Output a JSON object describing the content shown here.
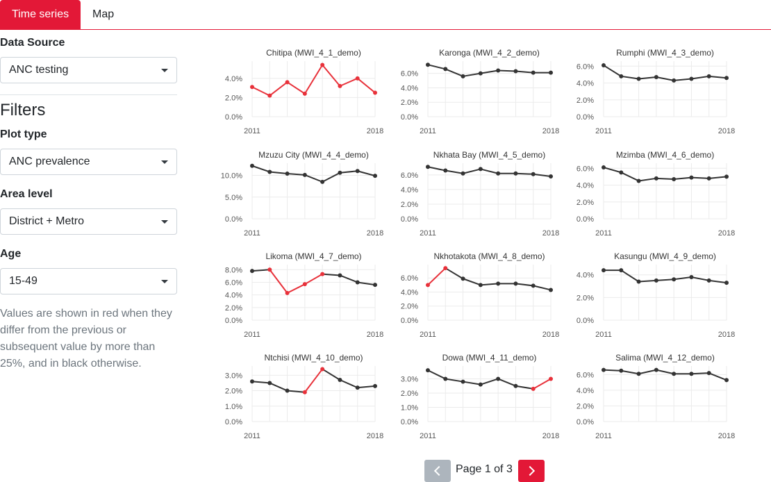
{
  "tabs": [
    {
      "label": "Time series",
      "active": true
    },
    {
      "label": "Map",
      "active": false
    }
  ],
  "sidebar": {
    "data_source": {
      "label": "Data Source",
      "value": "ANC testing"
    },
    "filters_heading": "Filters",
    "plot_type": {
      "label": "Plot type",
      "value": "ANC prevalence"
    },
    "area_level": {
      "label": "Area level",
      "value": "District + Metro"
    },
    "age": {
      "label": "Age",
      "value": "15-49"
    },
    "note": "Values are shown in red when they differ from the previous or subsequent value by more than 25%, and in black otherwise."
  },
  "pagination": {
    "text": "Page 1 of 3"
  },
  "colors": {
    "accent": "#e31837",
    "normal": "#333333",
    "flag": "#e8313a",
    "muted": "#adb5bd"
  },
  "chart_data": [
    {
      "type": "line",
      "title": "Chitipa (MWI_4_1_demo)",
      "x": [
        2011,
        2012,
        2013,
        2014,
        2015,
        2016,
        2017,
        2018
      ],
      "values": [
        3.1,
        2.2,
        3.6,
        2.4,
        5.4,
        3.2,
        4.0,
        2.5
      ],
      "flags": [
        1,
        1,
        1,
        1,
        1,
        1,
        1,
        1
      ],
      "yticks": [
        0,
        2,
        4
      ],
      "yticklabels": [
        "0.0%",
        "2.0%",
        "4.0%"
      ],
      "ylim": [
        0,
        5.8
      ],
      "xticks": [
        "2011",
        "2018"
      ]
    },
    {
      "type": "line",
      "title": "Karonga (MWI_4_2_demo)",
      "x": [
        2011,
        2012,
        2013,
        2014,
        2015,
        2016,
        2017,
        2018
      ],
      "values": [
        7.2,
        6.6,
        5.6,
        6.0,
        6.4,
        6.3,
        6.1,
        6.1
      ],
      "flags": [
        0,
        0,
        0,
        0,
        0,
        0,
        0,
        0
      ],
      "yticks": [
        0,
        2,
        4,
        6
      ],
      "yticklabels": [
        "0.0%",
        "2.0%",
        "4.0%",
        "6.0%"
      ],
      "ylim": [
        0,
        7.7
      ],
      "xticks": [
        "2011",
        "2018"
      ]
    },
    {
      "type": "line",
      "title": "Rumphi (MWI_4_3_demo)",
      "x": [
        2011,
        2012,
        2013,
        2014,
        2015,
        2016,
        2017,
        2018
      ],
      "values": [
        6.1,
        4.8,
        4.5,
        4.7,
        4.3,
        4.5,
        4.8,
        4.6
      ],
      "flags": [
        0,
        0,
        0,
        0,
        0,
        0,
        0,
        0
      ],
      "yticks": [
        0,
        2,
        4,
        6
      ],
      "yticklabels": [
        "0.0%",
        "2.0%",
        "4.0%",
        "6.0%"
      ],
      "ylim": [
        0,
        6.6
      ],
      "xticks": [
        "2011",
        "2018"
      ]
    },
    {
      "type": "line",
      "title": "Mzuzu City (MWI_4_4_demo)",
      "x": [
        2011,
        2012,
        2013,
        2014,
        2015,
        2016,
        2017,
        2018
      ],
      "values": [
        12.2,
        10.8,
        10.4,
        10.1,
        8.5,
        10.6,
        11.0,
        9.9
      ],
      "flags": [
        0,
        0,
        0,
        0,
        0,
        0,
        0,
        0
      ],
      "yticks": [
        0,
        5,
        10
      ],
      "yticklabels": [
        "0.0%",
        "5.0%",
        "10.0%"
      ],
      "ylim": [
        0,
        12.8
      ],
      "xticks": [
        "2011",
        "2018"
      ]
    },
    {
      "type": "line",
      "title": "Nkhata Bay (MWI_4_5_demo)",
      "x": [
        2011,
        2012,
        2013,
        2014,
        2015,
        2016,
        2017,
        2018
      ],
      "values": [
        7.1,
        6.6,
        6.2,
        6.8,
        6.2,
        6.2,
        6.1,
        5.8
      ],
      "flags": [
        0,
        0,
        0,
        0,
        0,
        0,
        0,
        0
      ],
      "yticks": [
        0,
        2,
        4,
        6
      ],
      "yticklabels": [
        "0.0%",
        "2.0%",
        "4.0%",
        "6.0%"
      ],
      "ylim": [
        0,
        7.6
      ],
      "xticks": [
        "2011",
        "2018"
      ]
    },
    {
      "type": "line",
      "title": "Mzimba (MWI_4_6_demo)",
      "x": [
        2011,
        2012,
        2013,
        2014,
        2015,
        2016,
        2017,
        2018
      ],
      "values": [
        6.1,
        5.5,
        4.5,
        4.8,
        4.7,
        4.9,
        4.8,
        5.0
      ],
      "flags": [
        0,
        0,
        0,
        0,
        0,
        0,
        0,
        0
      ],
      "yticks": [
        0,
        2,
        4,
        6
      ],
      "yticklabels": [
        "0.0%",
        "2.0%",
        "4.0%",
        "6.0%"
      ],
      "ylim": [
        0,
        6.6
      ],
      "xticks": [
        "2011",
        "2018"
      ]
    },
    {
      "type": "line",
      "title": "Likoma (MWI_4_7_demo)",
      "x": [
        2011,
        2012,
        2013,
        2014,
        2015,
        2016,
        2017,
        2018
      ],
      "values": [
        7.8,
        8.0,
        4.3,
        5.7,
        7.3,
        7.1,
        6.0,
        5.6
      ],
      "flags": [
        0,
        1,
        1,
        1,
        1,
        0,
        0,
        0
      ],
      "yticks": [
        0,
        2,
        4,
        6,
        8
      ],
      "yticklabels": [
        "0.0%",
        "2.0%",
        "4.0%",
        "6.0%",
        "8.0%"
      ],
      "ylim": [
        0,
        8.8
      ],
      "xticks": [
        "2011",
        "2018"
      ]
    },
    {
      "type": "line",
      "title": "Nkhotakota (MWI_4_8_demo)",
      "x": [
        2011,
        2012,
        2013,
        2014,
        2015,
        2016,
        2017,
        2018
      ],
      "values": [
        5.0,
        7.4,
        5.9,
        5.0,
        5.2,
        5.2,
        4.9,
        4.3
      ],
      "flags": [
        1,
        1,
        0,
        0,
        0,
        0,
        0,
        0
      ],
      "yticks": [
        0,
        2,
        4,
        6
      ],
      "yticklabels": [
        "0.0%",
        "2.0%",
        "4.0%",
        "6.0%"
      ],
      "ylim": [
        0,
        7.9
      ],
      "xticks": [
        "2011",
        "2018"
      ]
    },
    {
      "type": "line",
      "title": "Kasungu (MWI_4_9_demo)",
      "x": [
        2011,
        2012,
        2013,
        2014,
        2015,
        2016,
        2017,
        2018
      ],
      "values": [
        4.4,
        4.4,
        3.4,
        3.5,
        3.6,
        3.8,
        3.5,
        3.3
      ],
      "flags": [
        0,
        0,
        0,
        0,
        0,
        0,
        0,
        0
      ],
      "yticks": [
        0,
        2,
        4
      ],
      "yticklabels": [
        "0.0%",
        "2.0%",
        "4.0%"
      ],
      "ylim": [
        0,
        4.9
      ],
      "xticks": [
        "2011",
        "2018"
      ]
    },
    {
      "type": "line",
      "title": "Ntchisi (MWI_4_10_demo)",
      "x": [
        2011,
        2012,
        2013,
        2014,
        2015,
        2016,
        2017,
        2018
      ],
      "values": [
        2.6,
        2.5,
        2.0,
        1.9,
        3.4,
        2.7,
        2.2,
        2.3
      ],
      "flags": [
        0,
        0,
        0,
        1,
        1,
        0,
        0,
        0
      ],
      "yticks": [
        0,
        1,
        2,
        3
      ],
      "yticklabels": [
        "0.0%",
        "1.0%",
        "2.0%",
        "3.0%"
      ],
      "ylim": [
        0,
        3.6
      ],
      "xticks": [
        "2011",
        "2018"
      ]
    },
    {
      "type": "line",
      "title": "Dowa (MWI_4_11_demo)",
      "x": [
        2011,
        2012,
        2013,
        2014,
        2015,
        2016,
        2017,
        2018
      ],
      "values": [
        3.6,
        3.0,
        2.8,
        2.6,
        3.0,
        2.5,
        2.3,
        3.0
      ],
      "flags": [
        0,
        0,
        0,
        0,
        0,
        0,
        1,
        1
      ],
      "yticks": [
        0,
        1,
        2,
        3
      ],
      "yticklabels": [
        "0.0%",
        "1.0%",
        "2.0%",
        "3.0%"
      ],
      "ylim": [
        0,
        3.9
      ],
      "xticks": [
        "2011",
        "2018"
      ]
    },
    {
      "type": "line",
      "title": "Salima (MWI_4_12_demo)",
      "x": [
        2011,
        2012,
        2013,
        2014,
        2015,
        2016,
        2017,
        2018
      ],
      "values": [
        6.6,
        6.5,
        6.1,
        6.6,
        6.1,
        6.1,
        6.2,
        5.3
      ],
      "flags": [
        0,
        0,
        0,
        0,
        0,
        0,
        0,
        0
      ],
      "yticks": [
        0,
        2,
        4,
        6
      ],
      "yticklabels": [
        "0.0%",
        "2.0%",
        "4.0%",
        "6.0%"
      ],
      "ylim": [
        0,
        7.1
      ],
      "xticks": [
        "2011",
        "2018"
      ]
    }
  ]
}
